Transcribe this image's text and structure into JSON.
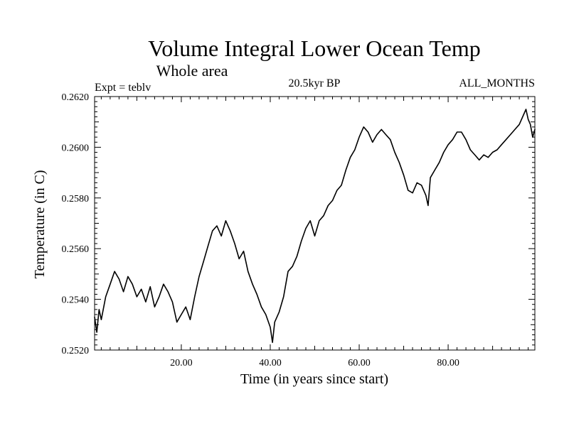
{
  "chart_data": {
    "type": "line",
    "title": "Volume Integral Lower Ocean Temp",
    "subtitle": "Whole area",
    "experiment": "Expt = teblv",
    "period": "20.5kyr BP",
    "months": "ALL_MONTHS",
    "xlabel": "Time (in years since start)",
    "ylabel": "Temperature (in C)",
    "xlim": [
      0.5,
      99.5
    ],
    "ylim": [
      0.252,
      0.262
    ],
    "x_ticks": [
      20,
      40,
      60,
      80
    ],
    "x_tick_labels": [
      "20.00",
      "40.00",
      "60.00",
      "80.00"
    ],
    "y_ticks": [
      0.252,
      0.254,
      0.256,
      0.258,
      0.26,
      0.262
    ],
    "y_tick_labels": [
      "0.2520",
      "0.2540",
      "0.2560",
      "0.2580",
      "0.2600",
      "0.2620"
    ],
    "grid": false,
    "line_color": "#000000",
    "series": [
      {
        "name": "Volume integral lower ocean temperature",
        "x": [
          0.5,
          1.0,
          1.5,
          2.0,
          3.0,
          4.0,
          5.0,
          6.0,
          7.0,
          8.0,
          9.0,
          10.0,
          11.0,
          12.0,
          13.0,
          14.0,
          15.0,
          16.0,
          17.0,
          18.0,
          19.0,
          20.0,
          21.0,
          22.0,
          23.0,
          24.0,
          25.0,
          26.0,
          27.0,
          28.0,
          29.0,
          30.0,
          31.0,
          32.0,
          33.0,
          34.0,
          35.0,
          36.0,
          37.0,
          38.0,
          39.0,
          40.0,
          40.5,
          41.0,
          42.0,
          43.0,
          44.0,
          45.0,
          46.0,
          47.0,
          48.0,
          49.0,
          50.0,
          51.0,
          52.0,
          53.0,
          54.0,
          55.0,
          56.0,
          57.0,
          58.0,
          59.0,
          60.0,
          61.0,
          62.0,
          63.0,
          64.0,
          65.0,
          66.0,
          67.0,
          68.0,
          69.0,
          70.0,
          71.0,
          72.0,
          73.0,
          74.0,
          75.0,
          75.5,
          76.0,
          77.0,
          78.0,
          79.0,
          80.0,
          81.0,
          82.0,
          83.0,
          84.0,
          85.0,
          86.0,
          87.0,
          88.0,
          89.0,
          90.0,
          91.0,
          92.0,
          93.0,
          94.0,
          95.0,
          96.0,
          97.0,
          97.5,
          98.0,
          98.5,
          99.0,
          99.5
        ],
        "values": [
          0.2533,
          0.2527,
          0.2536,
          0.2532,
          0.2541,
          0.2546,
          0.2551,
          0.2548,
          0.2543,
          0.2549,
          0.2546,
          0.2541,
          0.2544,
          0.2539,
          0.2545,
          0.2537,
          0.2541,
          0.2546,
          0.2543,
          0.2539,
          0.2531,
          0.2534,
          0.2537,
          0.2532,
          0.2541,
          0.2549,
          0.2555,
          0.2561,
          0.2567,
          0.2569,
          0.2565,
          0.2571,
          0.2567,
          0.2562,
          0.2556,
          0.2559,
          0.2551,
          0.2546,
          0.2542,
          0.2537,
          0.2534,
          0.2529,
          0.2523,
          0.2531,
          0.2535,
          0.2541,
          0.2551,
          0.2553,
          0.2557,
          0.2563,
          0.2568,
          0.2571,
          0.2565,
          0.2571,
          0.2573,
          0.2577,
          0.2579,
          0.2583,
          0.2585,
          0.2591,
          0.2596,
          0.2599,
          0.2604,
          0.2608,
          0.2606,
          0.2602,
          0.2605,
          0.2607,
          0.2605,
          0.2603,
          0.2598,
          0.2594,
          0.2589,
          0.2583,
          0.2582,
          0.2586,
          0.2585,
          0.2581,
          0.2577,
          0.2588,
          0.2591,
          0.2594,
          0.2598,
          0.2601,
          0.2603,
          0.2606,
          0.2606,
          0.2603,
          0.2599,
          0.2597,
          0.2595,
          0.2597,
          0.2596,
          0.2598,
          0.2599,
          0.2601,
          0.2603,
          0.2605,
          0.2607,
          0.2609,
          0.2613,
          0.2615,
          0.2611,
          0.2609,
          0.2604,
          0.2607
        ]
      }
    ]
  }
}
